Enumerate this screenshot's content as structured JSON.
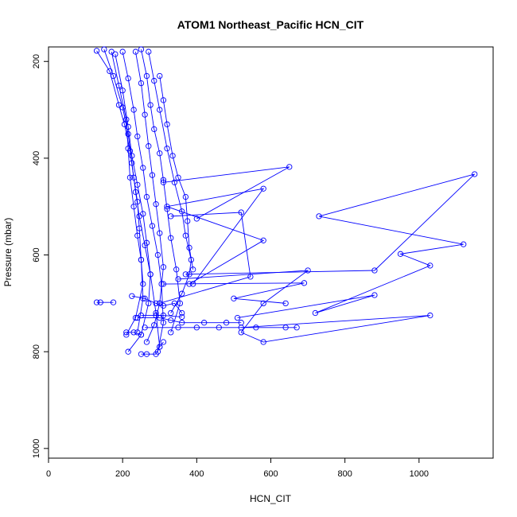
{
  "chart_data": {
    "type": "line",
    "title": "ATOM1 Northeast_Pacific HCN_CIT",
    "xlabel": "HCN_CIT",
    "ylabel": "Pressure (mbar)",
    "xlim": [
      0,
      1200
    ],
    "ylim": [
      1020,
      170
    ],
    "y_reversed": true,
    "xticks": [
      "0",
      "200",
      "400",
      "600",
      "800",
      "1000"
    ],
    "yticks": [
      "200",
      "400",
      "600",
      "800",
      "1000"
    ],
    "grid": false,
    "color": "#0000ff",
    "series": [
      {
        "points": [
          [
            130,
            178
          ],
          [
            165,
            220
          ],
          [
            190,
            290
          ],
          [
            205,
            330
          ],
          [
            220,
            385
          ],
          [
            230,
            440
          ],
          [
            240,
            490
          ],
          [
            245,
            545
          ],
          [
            250,
            610
          ],
          [
            255,
            690
          ],
          [
            240,
            760
          ]
        ]
      },
      {
        "points": [
          [
            150,
            175
          ],
          [
            175,
            230
          ],
          [
            200,
            295
          ],
          [
            215,
            350
          ],
          [
            225,
            410
          ],
          [
            235,
            470
          ],
          [
            245,
            520
          ],
          [
            260,
            580
          ],
          [
            275,
            640
          ],
          [
            290,
            720
          ],
          [
            300,
            790
          ]
        ]
      },
      {
        "points": [
          [
            200,
            180
          ],
          [
            215,
            235
          ],
          [
            230,
            300
          ],
          [
            240,
            355
          ],
          [
            255,
            420
          ],
          [
            265,
            480
          ],
          [
            280,
            540
          ],
          [
            295,
            600
          ],
          [
            305,
            660
          ],
          [
            310,
            740
          ],
          [
            295,
            800
          ]
        ]
      },
      {
        "points": [
          [
            250,
            175
          ],
          [
            265,
            230
          ],
          [
            275,
            290
          ],
          [
            285,
            340
          ],
          [
            300,
            390
          ],
          [
            310,
            445
          ],
          [
            320,
            505
          ],
          [
            330,
            565
          ],
          [
            345,
            630
          ],
          [
            355,
            700
          ],
          [
            330,
            760
          ]
        ]
      },
      {
        "points": [
          [
            170,
            180
          ],
          [
            190,
            250
          ],
          [
            210,
            320
          ],
          [
            215,
            380
          ],
          [
            220,
            440
          ],
          [
            230,
            500
          ],
          [
            240,
            560
          ],
          [
            250,
            610
          ],
          [
            255,
            660
          ],
          [
            235,
            730
          ],
          [
            210,
            765
          ]
        ]
      },
      {
        "points": [
          [
            270,
            180
          ],
          [
            285,
            240
          ],
          [
            300,
            300
          ],
          [
            320,
            380
          ],
          [
            340,
            450
          ],
          [
            360,
            510
          ],
          [
            370,
            560
          ],
          [
            385,
            610
          ],
          [
            380,
            640
          ],
          [
            360,
            680
          ],
          [
            330,
            720
          ]
        ]
      },
      {
        "points": [
          [
            235,
            180
          ],
          [
            250,
            245
          ],
          [
            260,
            310
          ],
          [
            270,
            375
          ],
          [
            280,
            435
          ],
          [
            290,
            495
          ],
          [
            300,
            555
          ],
          [
            310,
            625
          ],
          [
            300,
            700
          ],
          [
            285,
            745
          ],
          [
            265,
            780
          ]
        ]
      },
      {
        "points": [
          [
            180,
            185
          ],
          [
            200,
            260
          ],
          [
            215,
            335
          ],
          [
            225,
            395
          ],
          [
            240,
            455
          ],
          [
            255,
            515
          ],
          [
            265,
            575
          ],
          [
            275,
            640
          ],
          [
            270,
            700
          ],
          [
            250,
            765
          ],
          [
            215,
            800
          ]
        ]
      },
      {
        "points": [
          [
            300,
            230
          ],
          [
            310,
            280
          ],
          [
            320,
            330
          ],
          [
            335,
            395
          ],
          [
            350,
            440
          ],
          [
            370,
            480
          ],
          [
            375,
            530
          ],
          [
            380,
            585
          ],
          [
            390,
            630
          ]
        ]
      },
      {
        "points": [
          [
            130,
            698
          ],
          [
            140,
            698
          ],
          [
            175,
            698
          ]
        ]
      },
      {
        "points": [
          [
            225,
            685
          ],
          [
            260,
            690
          ],
          [
            290,
            700
          ],
          [
            310,
            705
          ],
          [
            340,
            700
          ],
          [
            360,
            720
          ]
        ]
      },
      {
        "points": [
          [
            240,
            730
          ],
          [
            300,
            730
          ],
          [
            330,
            735
          ],
          [
            360,
            740
          ],
          [
            420,
            740
          ],
          [
            480,
            740
          ],
          [
            520,
            740
          ]
        ]
      },
      {
        "points": [
          [
            260,
            750
          ],
          [
            350,
            750
          ],
          [
            400,
            750
          ],
          [
            460,
            750
          ],
          [
            560,
            750
          ],
          [
            640,
            750
          ],
          [
            670,
            750
          ]
        ]
      },
      {
        "points": [
          [
            250,
            725
          ],
          [
            290,
            725
          ],
          [
            310,
            725
          ],
          [
            360,
            728
          ]
        ]
      },
      {
        "points": [
          [
            210,
            760
          ],
          [
            230,
            760
          ],
          [
            250,
            765
          ]
        ]
      },
      {
        "points": [
          [
            250,
            805
          ],
          [
            265,
            805
          ],
          [
            290,
            805
          ],
          [
            300,
            790
          ],
          [
            310,
            780
          ]
        ]
      },
      {
        "points": [
          [
            330,
            520
          ],
          [
            520,
            512
          ],
          [
            545,
            645
          ],
          [
            300,
            700
          ]
        ]
      },
      {
        "points": [
          [
            310,
            450
          ],
          [
            650,
            418
          ],
          [
            400,
            525
          ]
        ]
      },
      {
        "points": [
          [
            350,
            650
          ],
          [
            700,
            632
          ],
          [
            580,
            700
          ],
          [
            520,
            760
          ],
          [
            580,
            780
          ],
          [
            1030,
            725
          ],
          [
            520,
            750
          ]
        ]
      },
      {
        "points": [
          [
            310,
            660
          ],
          [
            690,
            658
          ],
          [
            500,
            690
          ],
          [
            640,
            700
          ]
        ]
      },
      {
        "points": [
          [
            370,
            640
          ],
          [
            880,
            632
          ],
          [
            1150,
            433
          ],
          [
            730,
            520
          ],
          [
            1120,
            578
          ],
          [
            950,
            598
          ],
          [
            1030,
            622
          ],
          [
            720,
            720
          ],
          [
            880,
            683
          ],
          [
            510,
            730
          ]
        ]
      },
      {
        "points": [
          [
            380,
            660
          ],
          [
            580,
            570
          ],
          [
            320,
            500
          ],
          [
            580,
            463
          ],
          [
            390,
            660
          ]
        ]
      }
    ]
  }
}
